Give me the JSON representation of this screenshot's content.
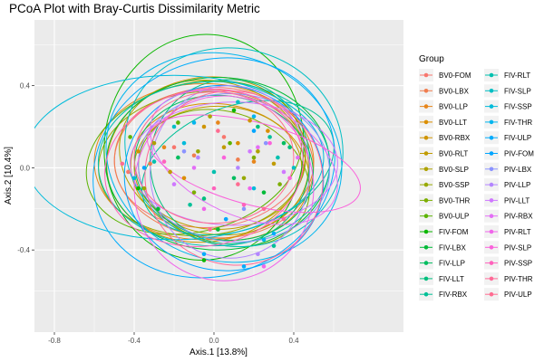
{
  "chart_data": {
    "type": "scatter",
    "title": "PCoA Plot with Bray-Curtis Dissimilarity Metric",
    "xlabel": "Axis.1   [13.8%]",
    "ylabel": "Axis.2   [10.4%]",
    "xlim": [
      -0.9,
      0.95
    ],
    "ylim": [
      -0.8,
      0.72
    ],
    "xticks": [
      -0.8,
      -0.4,
      0.0,
      0.4
    ],
    "xtick_labels": [
      "-0.8",
      "-0.4",
      "0.0",
      "0.4"
    ],
    "yticks": [
      -0.4,
      0.0,
      0.4
    ],
    "ytick_labels": [
      "-0.4",
      "0.0",
      "0.4"
    ],
    "grid": true,
    "background": "#ebebeb",
    "legend": {
      "title": "Group",
      "placement": "right",
      "columns": 2
    },
    "series": [
      {
        "name": "BV0-FOM",
        "color": "#F8766D",
        "ellipse": [
          -0.02,
          0.05,
          0.48,
          0.34,
          -5
        ],
        "points": [
          [
            -0.43,
            -0.02
          ],
          [
            -0.2,
            0.1
          ],
          [
            0.05,
            0.15
          ]
        ]
      },
      {
        "name": "BV0-LBX",
        "color": "#F07E4F",
        "ellipse": [
          0.0,
          0.02,
          0.5,
          0.36,
          5
        ],
        "points": [
          [
            -0.32,
            0.02
          ],
          [
            -0.1,
            0.06
          ],
          [
            0.12,
            0.04
          ]
        ]
      },
      {
        "name": "BV0-LLP",
        "color": "#E7861B",
        "ellipse": [
          -0.05,
          0.03,
          0.55,
          0.38,
          0
        ],
        "points": [
          [
            -0.25,
            0.1
          ],
          [
            0.02,
            0.22
          ],
          [
            0.2,
            0.03
          ]
        ]
      },
      {
        "name": "BV0-LLT",
        "color": "#DB8E00",
        "ellipse": [
          0.03,
          -0.02,
          0.45,
          0.33,
          10
        ],
        "points": [
          [
            -0.15,
            -0.05
          ],
          [
            0.12,
            0.12
          ],
          [
            0.27,
            0.18
          ]
        ]
      },
      {
        "name": "BV0-RBX",
        "color": "#CF9400",
        "ellipse": [
          -0.04,
          0.04,
          0.5,
          0.4,
          -10
        ],
        "points": [
          [
            -0.38,
            0.08
          ],
          [
            -0.05,
            0.2
          ],
          [
            0.18,
            0.23
          ]
        ]
      },
      {
        "name": "BV0-RLT",
        "color": "#C09B00",
        "ellipse": [
          0.02,
          0.0,
          0.42,
          0.3,
          0
        ],
        "points": [
          [
            -0.22,
            -0.02
          ],
          [
            0.05,
            0.1
          ],
          [
            0.3,
            0.02
          ]
        ]
      },
      {
        "name": "BV0-SLP",
        "color": "#AEA200",
        "ellipse": [
          0.0,
          0.05,
          0.48,
          0.37,
          15
        ],
        "points": [
          [
            -0.3,
            0.12
          ],
          [
            -0.02,
            0.25
          ],
          [
            0.22,
            0.08
          ]
        ]
      },
      {
        "name": "BV0-SSP",
        "color": "#97A900",
        "ellipse": [
          -0.06,
          0.02,
          0.52,
          0.35,
          -5
        ],
        "points": [
          [
            -0.35,
            -0.1
          ],
          [
            -0.08,
            0.08
          ],
          [
            0.15,
            -0.05
          ]
        ]
      },
      {
        "name": "BV0-THR",
        "color": "#7CAE00",
        "ellipse": [
          0.05,
          -0.05,
          0.44,
          0.32,
          20
        ],
        "points": [
          [
            -0.1,
            -0.12
          ],
          [
            0.2,
            0.05
          ],
          [
            0.33,
            -0.08
          ]
        ]
      },
      {
        "name": "BV0-ULP",
        "color": "#5BB300",
        "ellipse": [
          -0.1,
          0.05,
          0.55,
          0.36,
          -15
        ],
        "points": [
          [
            -0.42,
            0.15
          ],
          [
            -0.18,
            0.22
          ],
          [
            0.08,
            0.12
          ]
        ]
      },
      {
        "name": "FIV-FOM",
        "color": "#0CB702",
        "ellipse": [
          -0.05,
          0.1,
          0.5,
          0.55,
          5
        ],
        "points": [
          [
            -0.38,
            -0.1
          ],
          [
            -0.05,
            -0.45
          ],
          [
            0.1,
            0.28
          ]
        ]
      },
      {
        "name": "FIV-LBX",
        "color": "#00BA38",
        "ellipse": [
          0.02,
          0.02,
          0.56,
          0.42,
          0
        ],
        "points": [
          [
            -0.28,
            -0.2
          ],
          [
            0.02,
            -0.3
          ],
          [
            0.25,
            -0.12
          ]
        ]
      },
      {
        "name": "FIV-LLP",
        "color": "#00BD5F",
        "ellipse": [
          0.05,
          0.0,
          0.45,
          0.35,
          10
        ],
        "points": [
          [
            -0.18,
            0.05
          ],
          [
            0.1,
            -0.05
          ],
          [
            0.35,
            0.12
          ]
        ]
      },
      {
        "name": "FIV-LLT",
        "color": "#00BF7D",
        "ellipse": [
          0.08,
          0.03,
          0.4,
          0.4,
          0
        ],
        "points": [
          [
            -0.05,
            -0.15
          ],
          [
            0.22,
            0.2
          ],
          [
            0.38,
            0.1
          ]
        ]
      },
      {
        "name": "FIV-RBX",
        "color": "#00C097",
        "ellipse": [
          0.12,
          0.0,
          0.5,
          0.3,
          -20
        ],
        "points": [
          [
            -0.12,
            -0.18
          ],
          [
            0.28,
            0.15
          ],
          [
            0.3,
            -0.38
          ]
        ]
      },
      {
        "name": "FIV-RLT",
        "color": "#00C0AF",
        "ellipse": [
          0.0,
          0.02,
          0.58,
          0.4,
          0
        ],
        "points": [
          [
            -0.3,
            0.03
          ],
          [
            0.0,
            -0.02
          ],
          [
            0.32,
            0.05
          ]
        ]
      },
      {
        "name": "FIV-SLP",
        "color": "#00BFC4",
        "ellipse": [
          0.1,
          0.1,
          0.55,
          0.48,
          15
        ],
        "points": [
          [
            -0.2,
            0.2
          ],
          [
            0.12,
            0.32
          ],
          [
            0.4,
            0.0
          ]
        ]
      },
      {
        "name": "FIV-SSP",
        "color": "#00BBDA",
        "ellipse": [
          -0.2,
          0.05,
          0.75,
          0.4,
          0
        ],
        "points": [
          [
            -0.4,
            -0.05
          ],
          [
            -0.15,
            0.12
          ],
          [
            0.2,
            -0.1
          ]
        ]
      },
      {
        "name": "FIV-THR",
        "color": "#00B5EE",
        "ellipse": [
          0.05,
          0.05,
          0.6,
          0.5,
          20
        ],
        "points": [
          [
            -0.1,
            0.22
          ],
          [
            0.2,
            0.25
          ],
          [
            0.25,
            -0.35
          ]
        ]
      },
      {
        "name": "FIV-ULP",
        "color": "#00ACFC",
        "ellipse": [
          0.0,
          0.0,
          0.62,
          0.52,
          -25
        ],
        "points": [
          [
            -0.05,
            -0.42
          ],
          [
            0.15,
            -0.48
          ],
          [
            0.3,
            -0.32
          ]
        ]
      },
      {
        "name": "PIV-FOM",
        "color": "#00A5FF",
        "ellipse": [
          0.05,
          -0.05,
          0.5,
          0.45,
          10
        ],
        "points": [
          [
            -0.35,
            0.0
          ],
          [
            0.06,
            -0.25
          ],
          [
            0.2,
            0.18
          ]
        ]
      },
      {
        "name": "PIV-LBX",
        "color": "#8B93FF",
        "ellipse": [
          0.1,
          0.0,
          0.48,
          0.36,
          5
        ],
        "points": [
          [
            -0.15,
            0.08
          ],
          [
            0.15,
            -0.2
          ],
          [
            0.26,
            0.12
          ]
        ]
      },
      {
        "name": "PIV-LLP",
        "color": "#B385FF",
        "ellipse": [
          0.08,
          -0.02,
          0.4,
          0.42,
          0
        ],
        "points": [
          [
            -0.08,
            0.05
          ],
          [
            0.12,
            0.0
          ],
          [
            0.22,
            -0.42
          ]
        ]
      },
      {
        "name": "PIV-LLT",
        "color": "#CF78FF",
        "ellipse": [
          0.1,
          0.02,
          0.52,
          0.3,
          0
        ],
        "points": [
          [
            -0.2,
            -0.08
          ],
          [
            0.18,
            0.08
          ],
          [
            0.35,
            -0.02
          ]
        ]
      },
      {
        "name": "PIV-RBX",
        "color": "#E36EF6",
        "ellipse": [
          0.15,
          0.05,
          0.5,
          0.28,
          25
        ],
        "points": [
          [
            -0.1,
            0.0
          ],
          [
            0.22,
            0.1
          ],
          [
            0.42,
            0.05
          ]
        ]
      },
      {
        "name": "PIV-RLT",
        "color": "#F066EA",
        "ellipse": [
          0.05,
          -0.1,
          0.45,
          0.45,
          0
        ],
        "points": [
          [
            -0.05,
            -0.2
          ],
          [
            0.18,
            -0.1
          ],
          [
            0.25,
            -0.48
          ]
        ]
      },
      {
        "name": "PIV-SLP",
        "color": "#FA62DB",
        "ellipse": [
          0.2,
          0.02,
          0.55,
          0.2,
          15
        ],
        "points": [
          [
            0.05,
            0.05
          ],
          [
            0.28,
            0.12
          ],
          [
            0.38,
            -0.05
          ]
        ]
      },
      {
        "name": "PIV-SSP",
        "color": "#FF62BC",
        "ellipse": [
          -0.05,
          0.0,
          0.5,
          0.38,
          -10
        ],
        "points": [
          [
            -0.25,
            0.03
          ],
          [
            0.0,
            -0.1
          ],
          [
            0.15,
            -0.18
          ]
        ]
      },
      {
        "name": "PIV-THR",
        "color": "#FF6A98",
        "ellipse": [
          0.1,
          -0.05,
          0.45,
          0.42,
          30
        ],
        "points": [
          [
            -0.02,
            -0.3
          ],
          [
            0.25,
            -0.2
          ],
          [
            0.35,
            -0.25
          ]
        ]
      },
      {
        "name": "PIV-ULP",
        "color": "#FF6C91",
        "ellipse": [
          0.0,
          0.05,
          0.4,
          0.32,
          0
        ],
        "points": [
          [
            -0.46,
            0.02
          ],
          [
            0.02,
            0.18
          ],
          [
            0.12,
            -0.08
          ]
        ]
      }
    ]
  }
}
